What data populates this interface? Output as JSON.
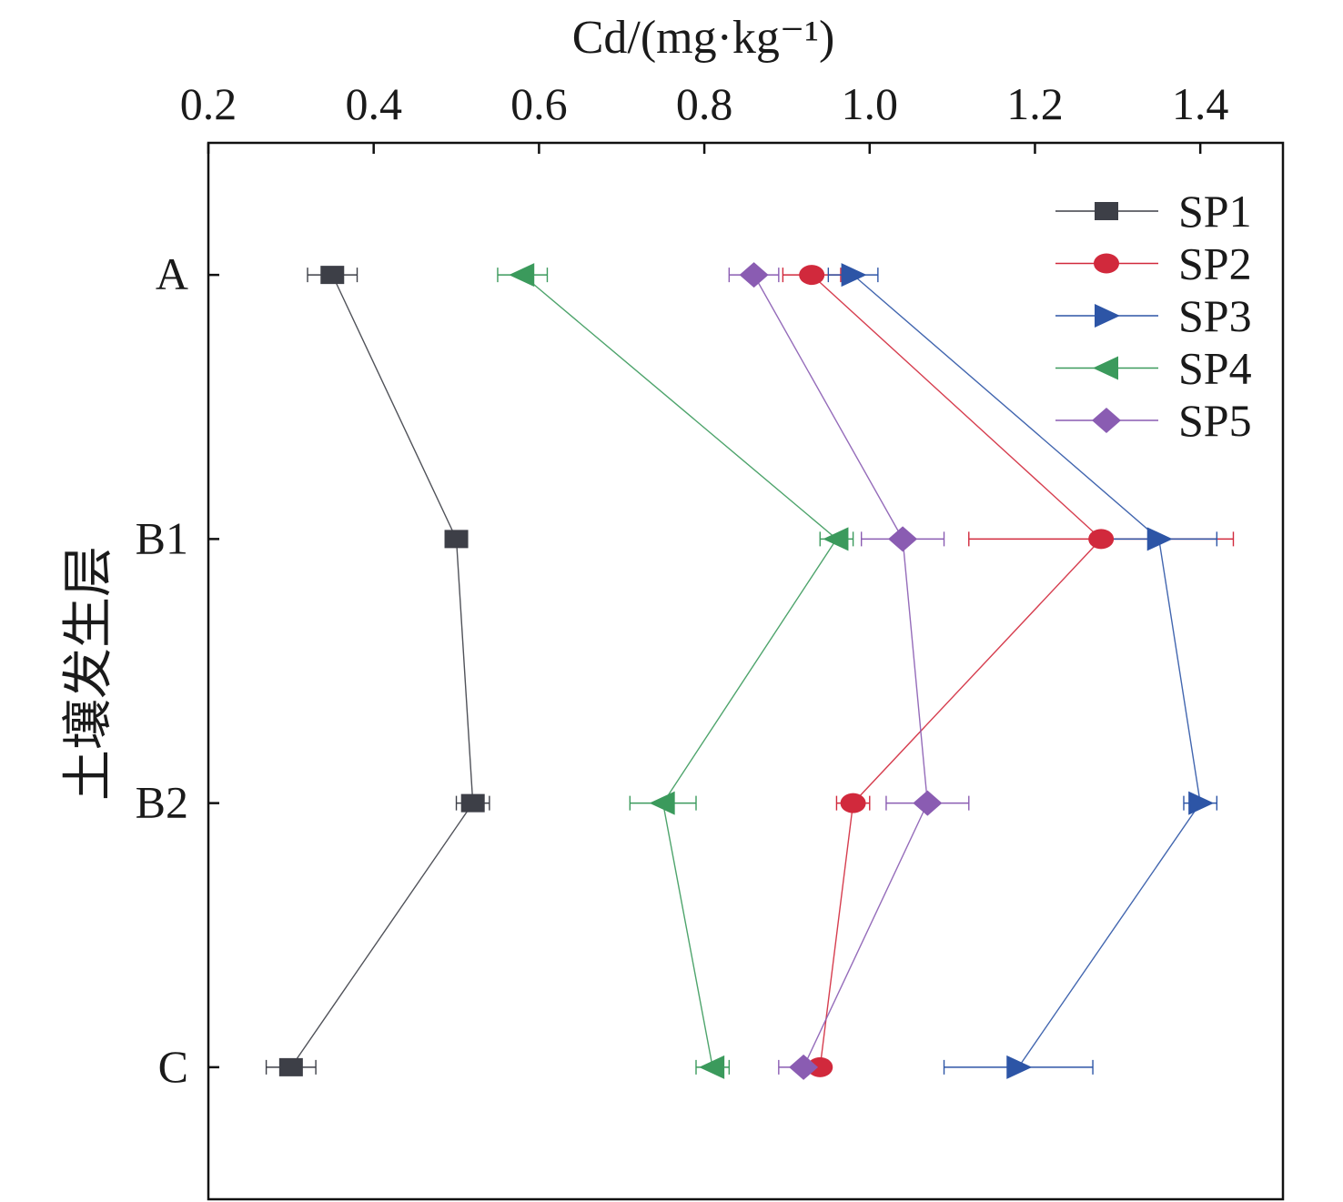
{
  "chart_data": {
    "type": "line",
    "xlabel": "Cd/(mg·kg⁻¹)",
    "ylabel": "土壤发生层",
    "x_axis_position": "top",
    "xlim": [
      0.2,
      1.5
    ],
    "xticks": [
      0.2,
      0.4,
      0.6,
      0.8,
      1.0,
      1.2,
      1.4
    ],
    "xtick_labels": [
      "0.2",
      "0.4",
      "0.6",
      "0.8",
      "1.0",
      "1.2",
      "1.4"
    ],
    "categories": [
      "A",
      "B1",
      "B2",
      "C"
    ],
    "grid": false,
    "legend_position": "top-right",
    "error_bars": true,
    "series": [
      {
        "name": "SP1",
        "color": "#3d3f47",
        "marker": "square",
        "values": [
          0.35,
          0.5,
          0.52,
          0.3
        ],
        "errors": [
          0.03,
          0.01,
          0.02,
          0.03
        ]
      },
      {
        "name": "SP2",
        "color": "#d1293c",
        "marker": "circle",
        "values": [
          0.93,
          1.28,
          0.98,
          0.94
        ],
        "errors": [
          0.035,
          0.16,
          0.02,
          0.01
        ]
      },
      {
        "name": "SP3",
        "color": "#2d55a6",
        "marker": "triangle-right",
        "values": [
          0.98,
          1.35,
          1.4,
          1.18
        ],
        "errors": [
          0.03,
          0.07,
          0.02,
          0.09
        ]
      },
      {
        "name": "SP4",
        "color": "#3b9a5c",
        "marker": "triangle-left",
        "values": [
          0.58,
          0.96,
          0.75,
          0.81
        ],
        "errors": [
          0.03,
          0.02,
          0.04,
          0.02
        ]
      },
      {
        "name": "SP5",
        "color": "#8a5cb2",
        "marker": "diamond",
        "values": [
          0.86,
          1.04,
          1.07,
          0.92
        ],
        "errors": [
          0.03,
          0.05,
          0.05,
          0.03
        ]
      }
    ]
  }
}
